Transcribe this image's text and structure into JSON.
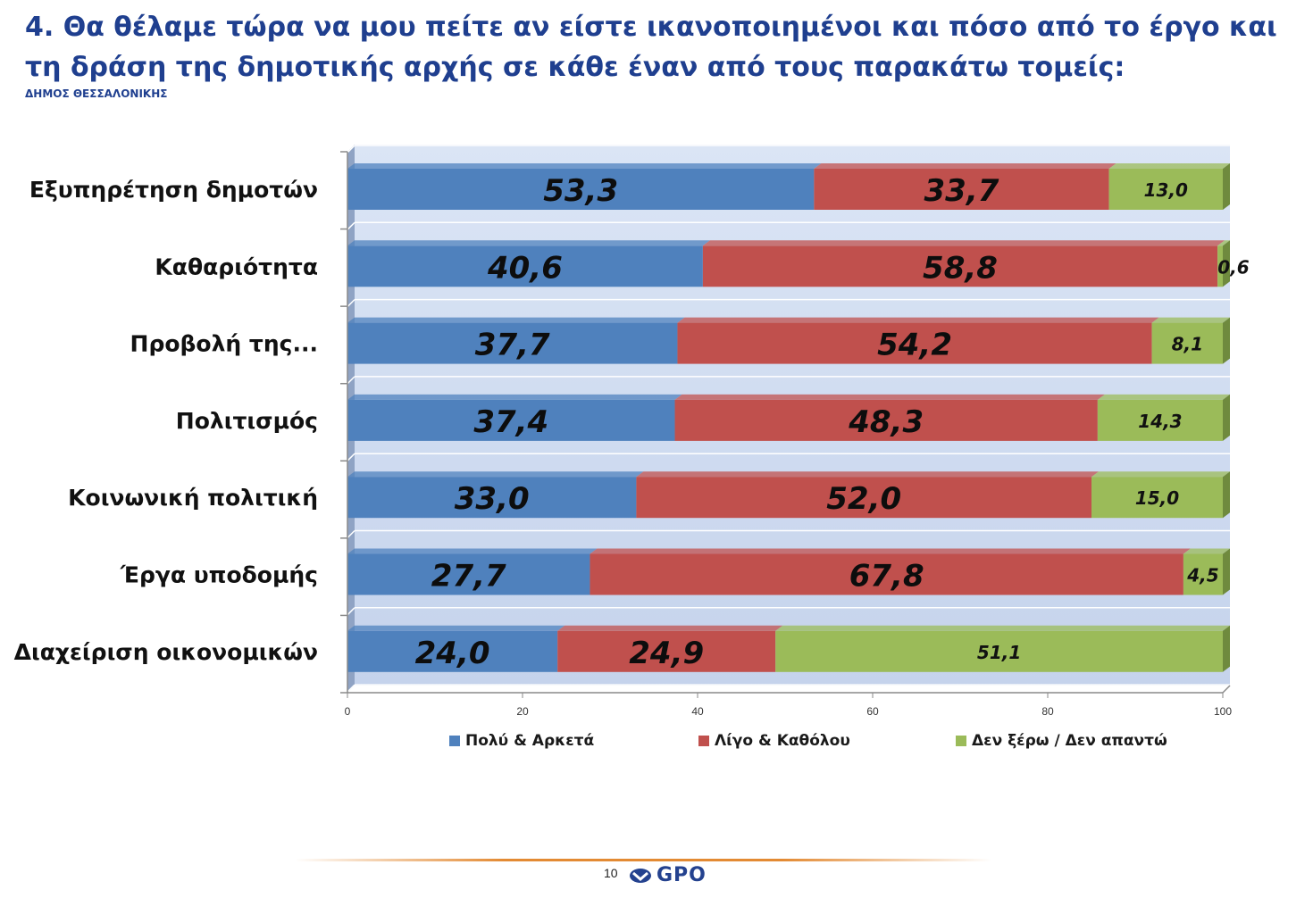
{
  "header": {
    "title": "4. Θα θέλαμε τώρα να μου πείτε αν είστε ικανοποιημένοι και πόσο από το έργο και τη δράση της δημοτικής αρχής σε κάθε έναν από τους παρακάτω τομείς:",
    "subtitle": "ΔΗΜΟΣ ΘΕΣΣΑΛΟΝΙΚΗΣ"
  },
  "chart_data": {
    "type": "bar",
    "orientation": "horizontal",
    "stacked": true,
    "title": "",
    "xlabel": "",
    "ylabel": "",
    "xlim": [
      0,
      100
    ],
    "xticks": [
      "0",
      "20",
      "40",
      "60",
      "80",
      "100"
    ],
    "grid": true,
    "legend_position": "bottom",
    "categories": [
      "Εξυπηρέτηση δημοτών",
      "Καθαριότητα",
      "Προβολή της...",
      "Πολιτισμός",
      "Κοινωνική πολιτική",
      "Έργα υποδομής",
      "Διαχείριση οικονομικών"
    ],
    "series": [
      {
        "name": "Πολύ & Αρκετά",
        "color": "#4f81bd",
        "values": [
          53.3,
          40.6,
          37.7,
          37.4,
          33.0,
          27.7,
          24.0
        ],
        "labels": [
          "53,3",
          "40,6",
          "37,7",
          "37,4",
          "33,0",
          "27,7",
          "24,0"
        ]
      },
      {
        "name": "Λίγο & Καθόλου",
        "color": "#c0504d",
        "values": [
          33.7,
          58.8,
          54.2,
          48.3,
          52.0,
          67.8,
          24.9
        ],
        "labels": [
          "33,7",
          "58,8",
          "54,2",
          "48,3",
          "52,0",
          "67,8",
          "24,9"
        ]
      },
      {
        "name": "Δεν ξέρω / Δεν απαντώ",
        "color": "#9bbb59",
        "values": [
          13.0,
          0.6,
          8.1,
          14.3,
          15.0,
          4.5,
          51.1
        ],
        "labels": [
          "13,0",
          "0,6",
          "8,1",
          "14,3",
          "15,0",
          "4,5",
          "51,1"
        ]
      }
    ]
  },
  "footer": {
    "page_number": "10",
    "logo_text": "GPO"
  }
}
